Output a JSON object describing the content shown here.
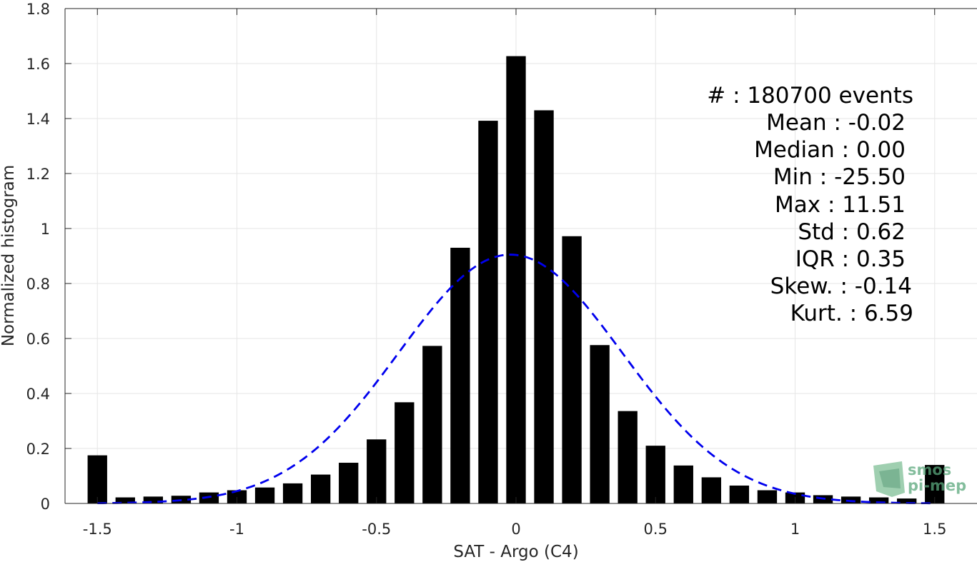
{
  "chart_data": {
    "type": "bar",
    "xlabel": "SAT - Argo (C4)",
    "ylabel": "Normalized histogram",
    "xlim": [
      -1.6,
      1.6
    ],
    "ylim": [
      0,
      1.8
    ],
    "xticks": [
      -1.5,
      -1,
      -0.5,
      0,
      0.5,
      1,
      1.5
    ],
    "xtick_labels": [
      "-1.5",
      "-1",
      "-0.5",
      "0",
      "0.5",
      "1",
      "1.5"
    ],
    "yticks": [
      0,
      0.2,
      0.4,
      0.6,
      0.8,
      1,
      1.2,
      1.4,
      1.6,
      1.8
    ],
    "ytick_labels": [
      "0",
      "0.2",
      "0.4",
      "0.6",
      "0.8",
      "1",
      "1.2",
      "1.4",
      "1.6",
      "1.8"
    ],
    "grid": true,
    "bar_color": "#000000",
    "bar_width": 0.07,
    "x": [
      -1.5,
      -1.4,
      -1.3,
      -1.2,
      -1.1,
      -1.0,
      -0.9,
      -0.8,
      -0.7,
      -0.6,
      -0.5,
      -0.4,
      -0.3,
      -0.2,
      -0.1,
      0.0,
      0.1,
      0.2,
      0.3,
      0.4,
      0.5,
      0.6,
      0.7,
      0.8,
      0.9,
      1.0,
      1.1,
      1.2,
      1.3,
      1.4,
      1.5
    ],
    "values": [
      0.175,
      0.022,
      0.025,
      0.028,
      0.04,
      0.048,
      0.058,
      0.073,
      0.105,
      0.148,
      0.233,
      0.368,
      0.573,
      0.93,
      1.392,
      1.627,
      1.43,
      0.972,
      0.576,
      0.336,
      0.21,
      0.138,
      0.095,
      0.065,
      0.048,
      0.04,
      0.03,
      0.025,
      0.022,
      0.018,
      0.14
    ],
    "fit_curve": {
      "type": "gaussian",
      "style": "dashed",
      "color": "#0000ee",
      "mean": -0.02,
      "peak": 0.905,
      "sigma": 0.4,
      "x_range": [
        -1.5,
        1.5
      ]
    },
    "stats_lines": [
      "#  : 180700 events",
      "Mean : -0.02",
      "Median : 0.00",
      "Min : -25.50",
      "Max : 11.51",
      "Std : 0.62",
      "IQR : 0.35",
      "Skew. : -0.14",
      "Kurt. : 6.59"
    ]
  },
  "logo": {
    "line1": "smos",
    "line2": "pi-mep",
    "color": "#5aa87c"
  }
}
